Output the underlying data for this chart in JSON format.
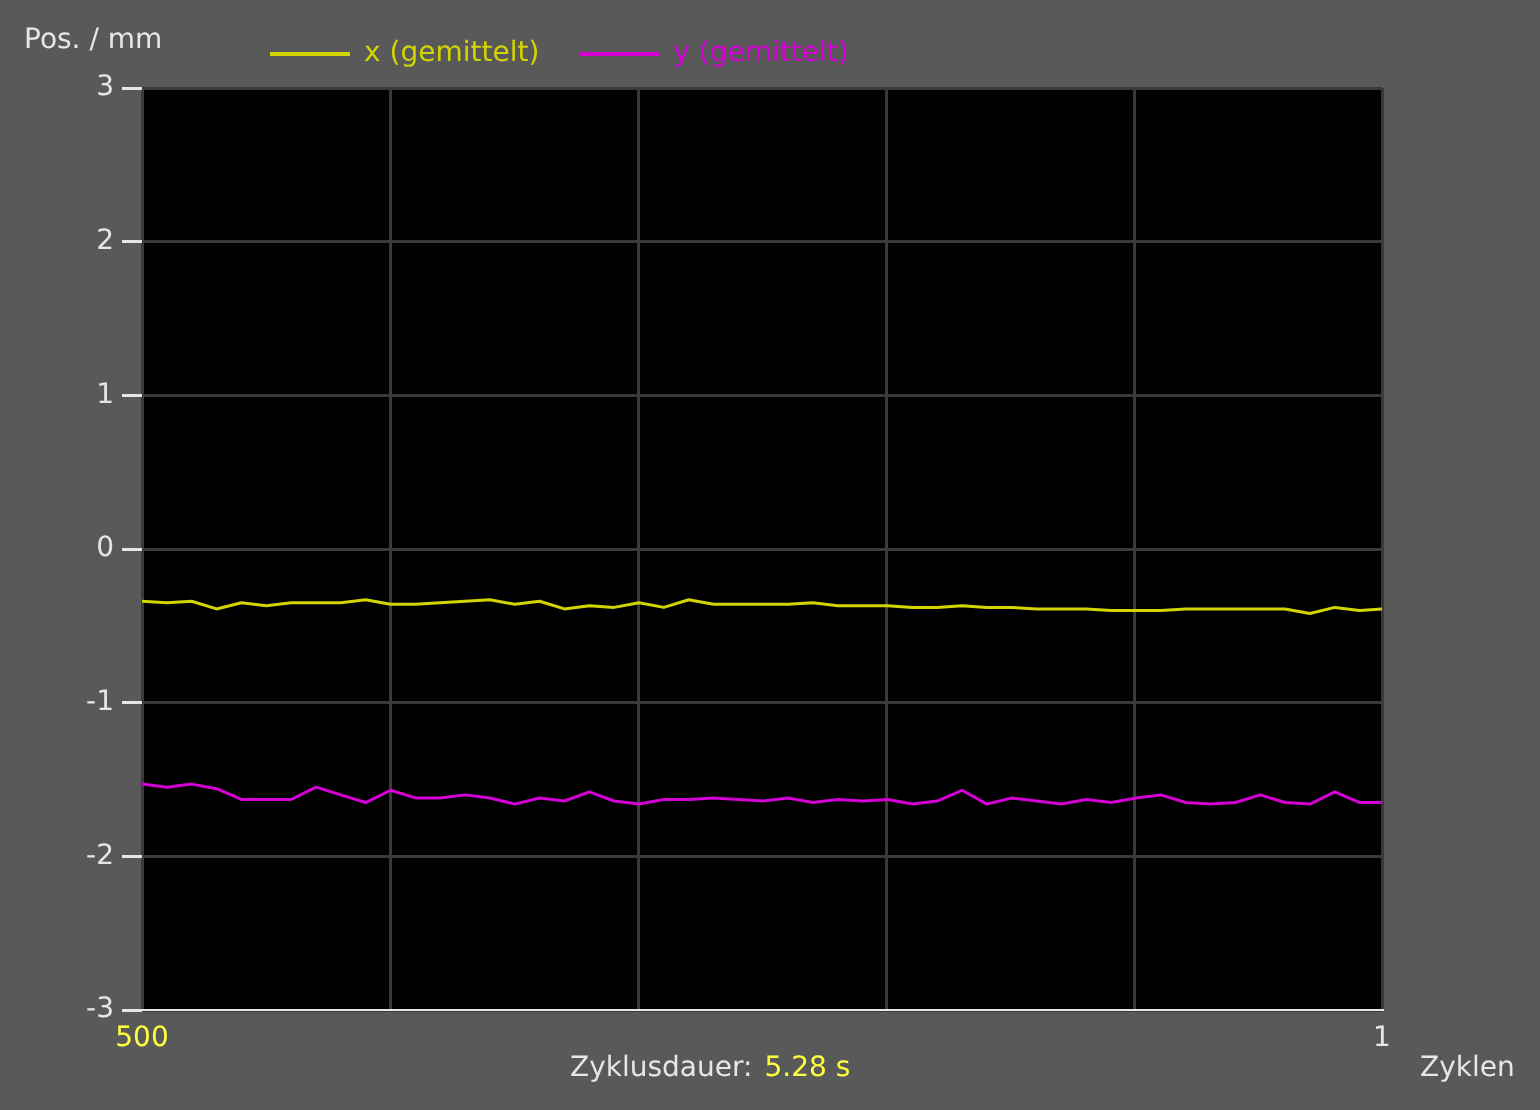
{
  "chart_data": {
    "type": "line",
    "ylabel": "Pos. / mm",
    "xlabel": "Zyklen",
    "annotations": [
      "Zyklusdauer: 5.28 s"
    ],
    "x": [
      500,
      490,
      480,
      470,
      460,
      450,
      440,
      430,
      420,
      410,
      400,
      390,
      380,
      370,
      360,
      350,
      340,
      330,
      320,
      310,
      300,
      290,
      280,
      270,
      260,
      250,
      240,
      230,
      220,
      210,
      200,
      190,
      180,
      170,
      160,
      150,
      140,
      130,
      120,
      110,
      100,
      90,
      80,
      70,
      60,
      50,
      40,
      30,
      20,
      10,
      1
    ],
    "xlim": [
      500,
      1
    ],
    "xticks": [
      500,
      {
        "value": 400.2,
        "label": null
      },
      {
        "value": 300.4,
        "label": null
      },
      {
        "value": 200.6,
        "label": null
      },
      {
        "value": 100.8,
        "label": null
      },
      1
    ],
    "ylim": [
      -3,
      3
    ],
    "yticks": [
      -3,
      -2,
      -1,
      0,
      1,
      2,
      3
    ],
    "grid": true,
    "legend": "top",
    "line_style": "solid",
    "marker": "none",
    "series": [
      {
        "name": "x (gemittelt)",
        "color": "#d4d400",
        "values": [
          -0.34,
          -0.35,
          -0.34,
          -0.39,
          -0.35,
          -0.37,
          -0.35,
          -0.35,
          -0.35,
          -0.33,
          -0.36,
          -0.36,
          -0.35,
          -0.34,
          -0.33,
          -0.36,
          -0.34,
          -0.39,
          -0.37,
          -0.38,
          -0.35,
          -0.38,
          -0.33,
          -0.36,
          -0.36,
          -0.36,
          -0.36,
          -0.35,
          -0.37,
          -0.37,
          -0.37,
          -0.38,
          -0.38,
          -0.37,
          -0.38,
          -0.38,
          -0.39,
          -0.39,
          -0.39,
          -0.4,
          -0.4,
          -0.4,
          -0.39,
          -0.39,
          -0.39,
          -0.39,
          -0.39,
          -0.42,
          -0.38,
          -0.4,
          -0.39
        ]
      },
      {
        "name": "y (gemittelt)",
        "color": "#d400d4",
        "values": [
          -1.53,
          -1.55,
          -1.53,
          -1.56,
          -1.63,
          -1.63,
          -1.63,
          -1.55,
          -1.6,
          -1.65,
          -1.57,
          -1.62,
          -1.62,
          -1.6,
          -1.62,
          -1.66,
          -1.62,
          -1.64,
          -1.58,
          -1.64,
          -1.66,
          -1.63,
          -1.63,
          -1.62,
          -1.63,
          -1.64,
          -1.62,
          -1.65,
          -1.63,
          -1.64,
          -1.63,
          -1.66,
          -1.64,
          -1.57,
          -1.66,
          -1.62,
          -1.64,
          -1.66,
          -1.63,
          -1.65,
          -1.62,
          -1.6,
          -1.65,
          -1.66,
          -1.65,
          -1.6,
          -1.65,
          -1.66,
          -1.58,
          -1.65,
          -1.65
        ]
      }
    ]
  }
}
